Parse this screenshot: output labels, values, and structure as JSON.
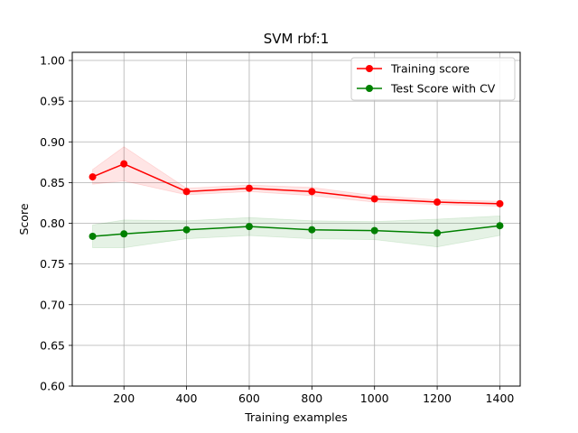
{
  "chart_data": {
    "type": "line",
    "title": "SVM rbf:1",
    "xlabel": "Training examples",
    "ylabel": "Score",
    "xlim": [
      35,
      1465
    ],
    "ylim": [
      0.6,
      1.01
    ],
    "xticks": [
      200,
      400,
      600,
      800,
      1000,
      1200,
      1400
    ],
    "yticks": [
      0.6,
      0.65,
      0.7,
      0.75,
      0.8,
      0.85,
      0.9,
      0.95,
      1.0
    ],
    "ytick_labels": [
      "0.60",
      "0.65",
      "0.70",
      "0.75",
      "0.80",
      "0.85",
      "0.90",
      "0.95",
      "1.00"
    ],
    "grid": true,
    "legend_position": "top-right",
    "x": [
      100,
      200,
      400,
      600,
      800,
      1000,
      1200,
      1400
    ],
    "series": [
      {
        "name": "Training score",
        "color": "#ff0000",
        "band_color": "#ff0000",
        "values": [
          0.857,
          0.873,
          0.839,
          0.843,
          0.839,
          0.83,
          0.826,
          0.824
        ],
        "std": [
          0.009,
          0.021,
          0.004,
          0.004,
          0.005,
          0.004,
          0.003,
          0.003
        ]
      },
      {
        "name": "Test Score with CV",
        "color": "#008000",
        "band_color": "#008000",
        "values": [
          0.784,
          0.787,
          0.792,
          0.796,
          0.792,
          0.791,
          0.788,
          0.797
        ],
        "std": [
          0.014,
          0.017,
          0.011,
          0.011,
          0.011,
          0.011,
          0.017,
          0.012
        ]
      }
    ]
  }
}
